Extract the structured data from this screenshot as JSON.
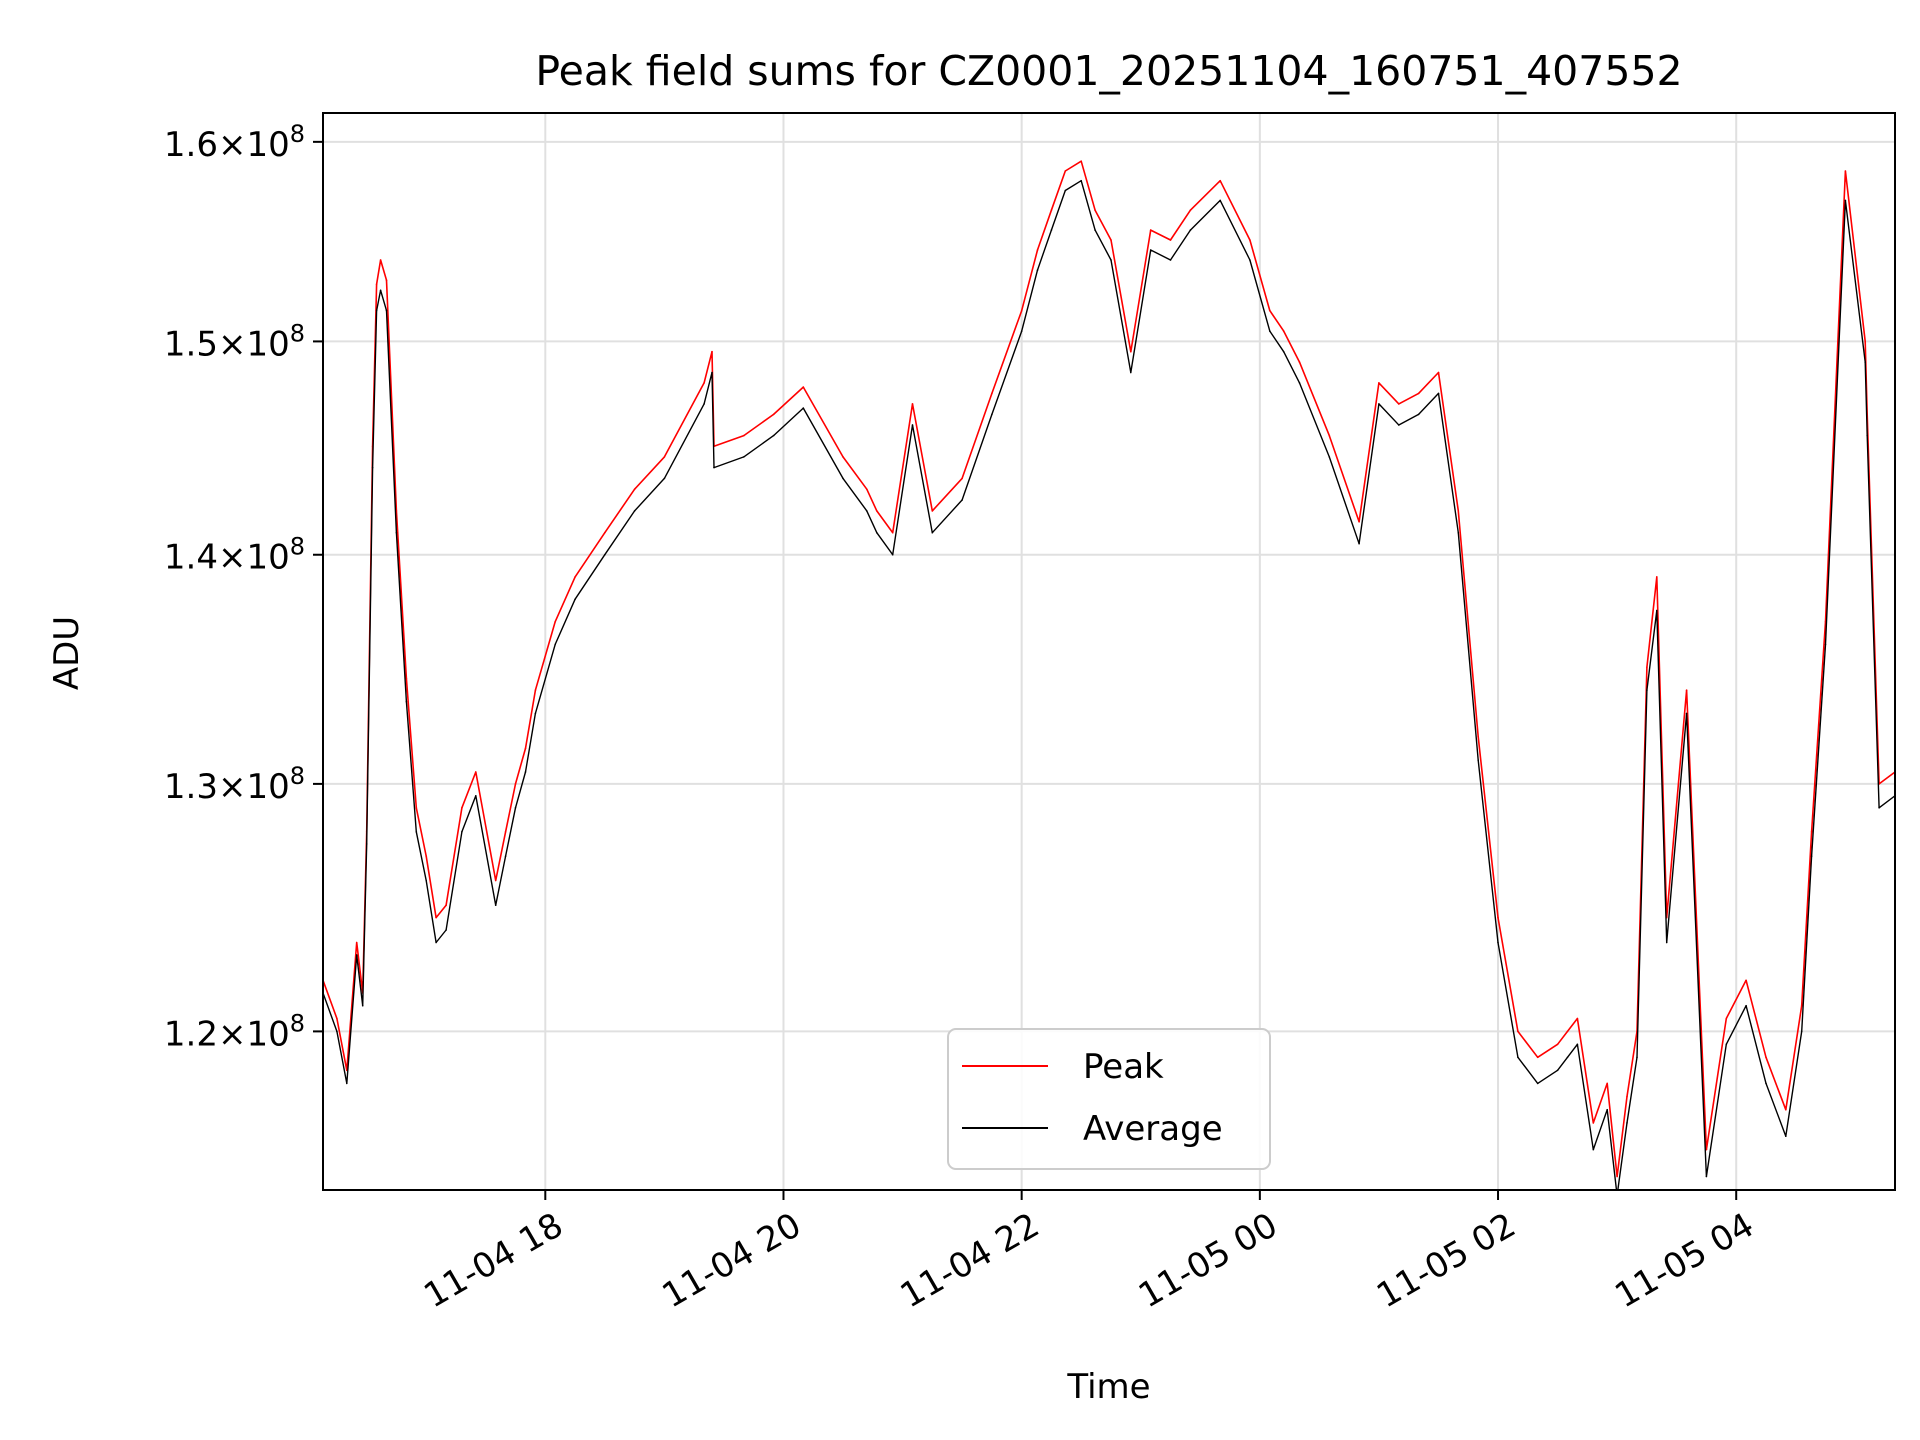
{
  "chart_data": {
    "type": "line",
    "title": "Peak field sums for CZ0001_20251104_160751_407552",
    "xlabel": "Time",
    "ylabel": "ADU",
    "x_axis_type": "datetime",
    "xlim": [
      "2025-11-04 16:08",
      "2025-11-05 05:20"
    ],
    "ylim": [
      114000000,
      161500000
    ],
    "yscale": "log",
    "grid": true,
    "legend_position": "bottom-center",
    "x_ticks": [
      {
        "value": "2025-11-04 18:00",
        "label": "11-04 18"
      },
      {
        "value": "2025-11-04 20:00",
        "label": "11-04 20"
      },
      {
        "value": "2025-11-04 22:00",
        "label": "11-04 22"
      },
      {
        "value": "2025-11-05 00:00",
        "label": "11-05 00"
      },
      {
        "value": "2025-11-05 02:00",
        "label": "11-05 02"
      },
      {
        "value": "2025-11-05 04:00",
        "label": "11-05 04"
      }
    ],
    "y_ticks": [
      {
        "value": 120000000,
        "mantissa": "1.2",
        "exponent": "8"
      },
      {
        "value": 130000000,
        "mantissa": "1.3",
        "exponent": "8"
      },
      {
        "value": 140000000,
        "mantissa": "1.4",
        "exponent": "8"
      },
      {
        "value": 150000000,
        "mantissa": "1.5",
        "exponent": "8"
      },
      {
        "value": 160000000,
        "mantissa": "1.6",
        "exponent": "8"
      }
    ],
    "x": [
      "2025-11-04 16:08",
      "2025-11-04 16:15",
      "2025-11-04 16:20",
      "2025-11-04 16:25",
      "2025-11-04 16:28",
      "2025-11-04 16:30",
      "2025-11-04 16:33",
      "2025-11-04 16:35",
      "2025-11-04 16:37",
      "2025-11-04 16:40",
      "2025-11-04 16:45",
      "2025-11-04 16:50",
      "2025-11-04 16:55",
      "2025-11-04 17:00",
      "2025-11-04 17:05",
      "2025-11-04 17:10",
      "2025-11-04 17:18",
      "2025-11-04 17:25",
      "2025-11-04 17:35",
      "2025-11-04 17:40",
      "2025-11-04 17:45",
      "2025-11-04 17:50",
      "2025-11-04 17:55",
      "2025-11-04 18:05",
      "2025-11-04 18:15",
      "2025-11-04 18:30",
      "2025-11-04 18:45",
      "2025-11-04 19:00",
      "2025-11-04 19:20",
      "2025-11-04 19:24",
      "2025-11-04 19:25",
      "2025-11-04 19:40",
      "2025-11-04 19:55",
      "2025-11-04 20:10",
      "2025-11-04 20:30",
      "2025-11-04 20:42",
      "2025-11-04 20:47",
      "2025-11-04 20:55",
      "2025-11-04 21:05",
      "2025-11-04 21:15",
      "2025-11-04 21:30",
      "2025-11-04 21:45",
      "2025-11-04 22:00",
      "2025-11-04 22:08",
      "2025-11-04 22:15",
      "2025-11-04 22:22",
      "2025-11-04 22:30",
      "2025-11-04 22:37",
      "2025-11-04 22:45",
      "2025-11-04 22:55",
      "2025-11-04 23:05",
      "2025-11-04 23:15",
      "2025-11-04 23:25",
      "2025-11-04 23:40",
      "2025-11-04 23:55",
      "2025-11-05 00:05",
      "2025-11-05 00:12",
      "2025-11-05 00:20",
      "2025-11-05 00:35",
      "2025-11-05 00:50",
      "2025-11-05 01:00",
      "2025-11-05 01:10",
      "2025-11-05 01:20",
      "2025-11-05 01:30",
      "2025-11-05 01:40",
      "2025-11-05 01:50",
      "2025-11-05 02:00",
      "2025-11-05 02:10",
      "2025-11-05 02:20",
      "2025-11-05 02:30",
      "2025-11-05 02:35",
      "2025-11-05 02:40",
      "2025-11-05 02:48",
      "2025-11-05 02:55",
      "2025-11-05 03:00",
      "2025-11-05 03:05",
      "2025-11-05 03:10",
      "2025-11-05 03:15",
      "2025-11-05 03:20",
      "2025-11-05 03:25",
      "2025-11-05 03:35",
      "2025-11-05 03:45",
      "2025-11-05 03:55",
      "2025-11-05 04:05",
      "2025-11-05 04:15",
      "2025-11-05 04:25",
      "2025-11-05 04:33",
      "2025-11-05 04:38",
      "2025-11-05 04:45",
      "2025-11-05 04:55",
      "2025-11-05 05:05",
      "2025-11-05 05:06",
      "2025-11-05 05:12",
      "2025-11-05 05:20"
    ],
    "series": [
      {
        "name": "Peak",
        "color": "#ff0000",
        "values": [
          122000000,
          120500000,
          118500000,
          123500000,
          121500000,
          128000000,
          145000000,
          152800000,
          154000000,
          153000000,
          142000000,
          134500000,
          129000000,
          127000000,
          124500000,
          125000000,
          129000000,
          130500000,
          126000000,
          128000000,
          130000000,
          131500000,
          134000000,
          137000000,
          139000000,
          141000000,
          143000000,
          144500000,
          148000000,
          149500000,
          145000000,
          145500000,
          146500000,
          147800000,
          144500000,
          143000000,
          142000000,
          141000000,
          147000000,
          142000000,
          143500000,
          147500000,
          151500000,
          154500000,
          156500000,
          158500000,
          159000000,
          156500000,
          155000000,
          149500000,
          155500000,
          155000000,
          156500000,
          158000000,
          155000000,
          151500000,
          150500000,
          149000000,
          145500000,
          141500000,
          148000000,
          147000000,
          147500000,
          148500000,
          142000000,
          132000000,
          124500000,
          120000000,
          119000000,
          119500000,
          120000000,
          120500000,
          116500000,
          118000000,
          114500000,
          117500000,
          120000000,
          135000000,
          139000000,
          124500000,
          134000000,
          115500000,
          120500000,
          122000000,
          119000000,
          117000000,
          121000000,
          128000000,
          137000000,
          158500000,
          150000000,
          146500000,
          130000000,
          130500000
        ]
      },
      {
        "name": "Average",
        "color": "#000000",
        "values": [
          121500000,
          120000000,
          118000000,
          123000000,
          121000000,
          127500000,
          144000000,
          151500000,
          152500000,
          151500000,
          141000000,
          133500000,
          128000000,
          126000000,
          123500000,
          124000000,
          128000000,
          129500000,
          125000000,
          127000000,
          129000000,
          130500000,
          133000000,
          136000000,
          138000000,
          140000000,
          142000000,
          143500000,
          147000000,
          148500000,
          144000000,
          144500000,
          145500000,
          146800000,
          143500000,
          142000000,
          141000000,
          140000000,
          146000000,
          141000000,
          142500000,
          146500000,
          150500000,
          153500000,
          155500000,
          157500000,
          158000000,
          155500000,
          154000000,
          148500000,
          154500000,
          154000000,
          155500000,
          157000000,
          154000000,
          150500000,
          149500000,
          148000000,
          144500000,
          140500000,
          147000000,
          146000000,
          146500000,
          147500000,
          141000000,
          131000000,
          123500000,
          119000000,
          118000000,
          118500000,
          119000000,
          119500000,
          115500000,
          117000000,
          113800000,
          116500000,
          119000000,
          134000000,
          137500000,
          123500000,
          133000000,
          114500000,
          119500000,
          121000000,
          118000000,
          116000000,
          120000000,
          127000000,
          136000000,
          157000000,
          149000000,
          145500000,
          129000000,
          129500000
        ]
      }
    ]
  }
}
